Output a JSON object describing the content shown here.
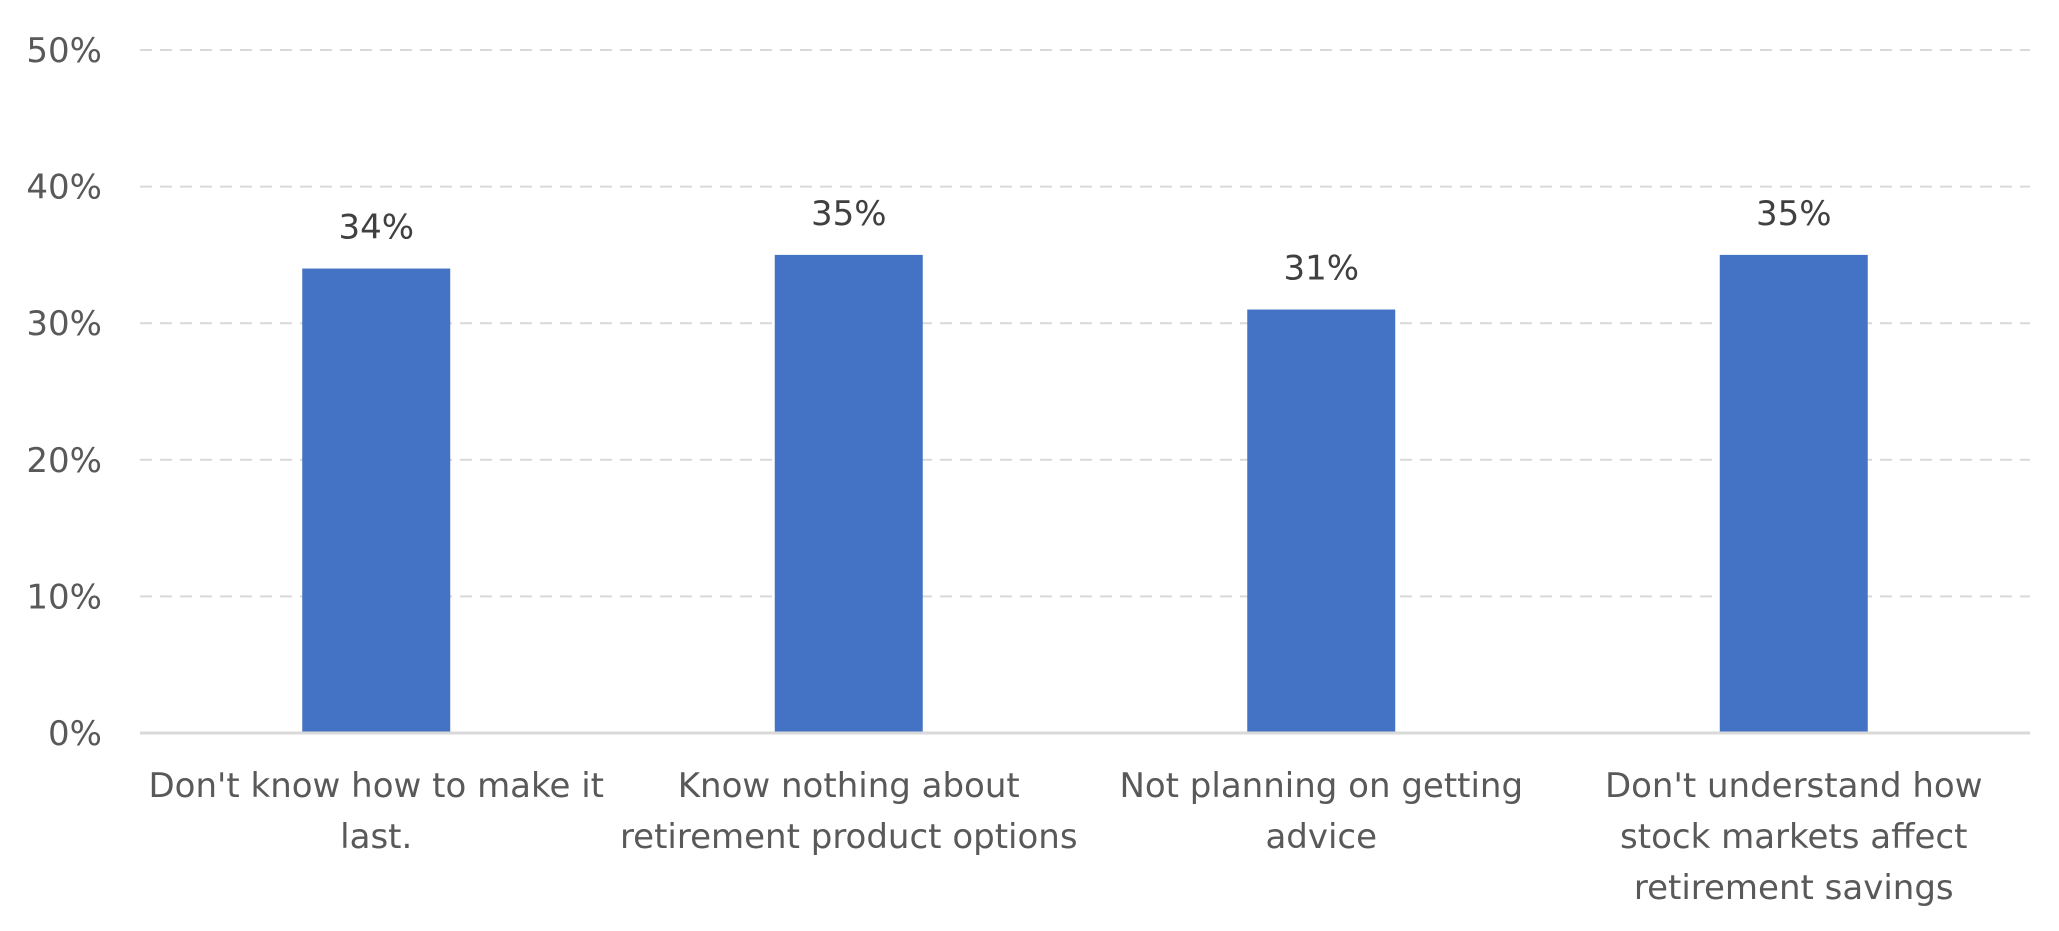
{
  "chart_data": {
    "type": "bar",
    "categories": [
      [
        "Don't know how to make it",
        "last."
      ],
      [
        "Know nothing about",
        "retirement product options"
      ],
      [
        "Not planning on getting",
        "advice"
      ],
      [
        "Don't understand how",
        "stock markets affect",
        "retirement savings"
      ]
    ],
    "values": [
      34,
      35,
      31,
      35
    ],
    "data_labels": [
      "34%",
      "35%",
      "31%",
      "35%"
    ],
    "ylim": [
      0,
      50
    ],
    "yticks": [
      0,
      10,
      20,
      30,
      40,
      50
    ],
    "ytick_labels": [
      "0%",
      "10%",
      "20%",
      "30%",
      "40%",
      "50%"
    ],
    "grid": true,
    "bar_color": "#4472c4",
    "title": "",
    "xlabel": "",
    "ylabel": ""
  }
}
